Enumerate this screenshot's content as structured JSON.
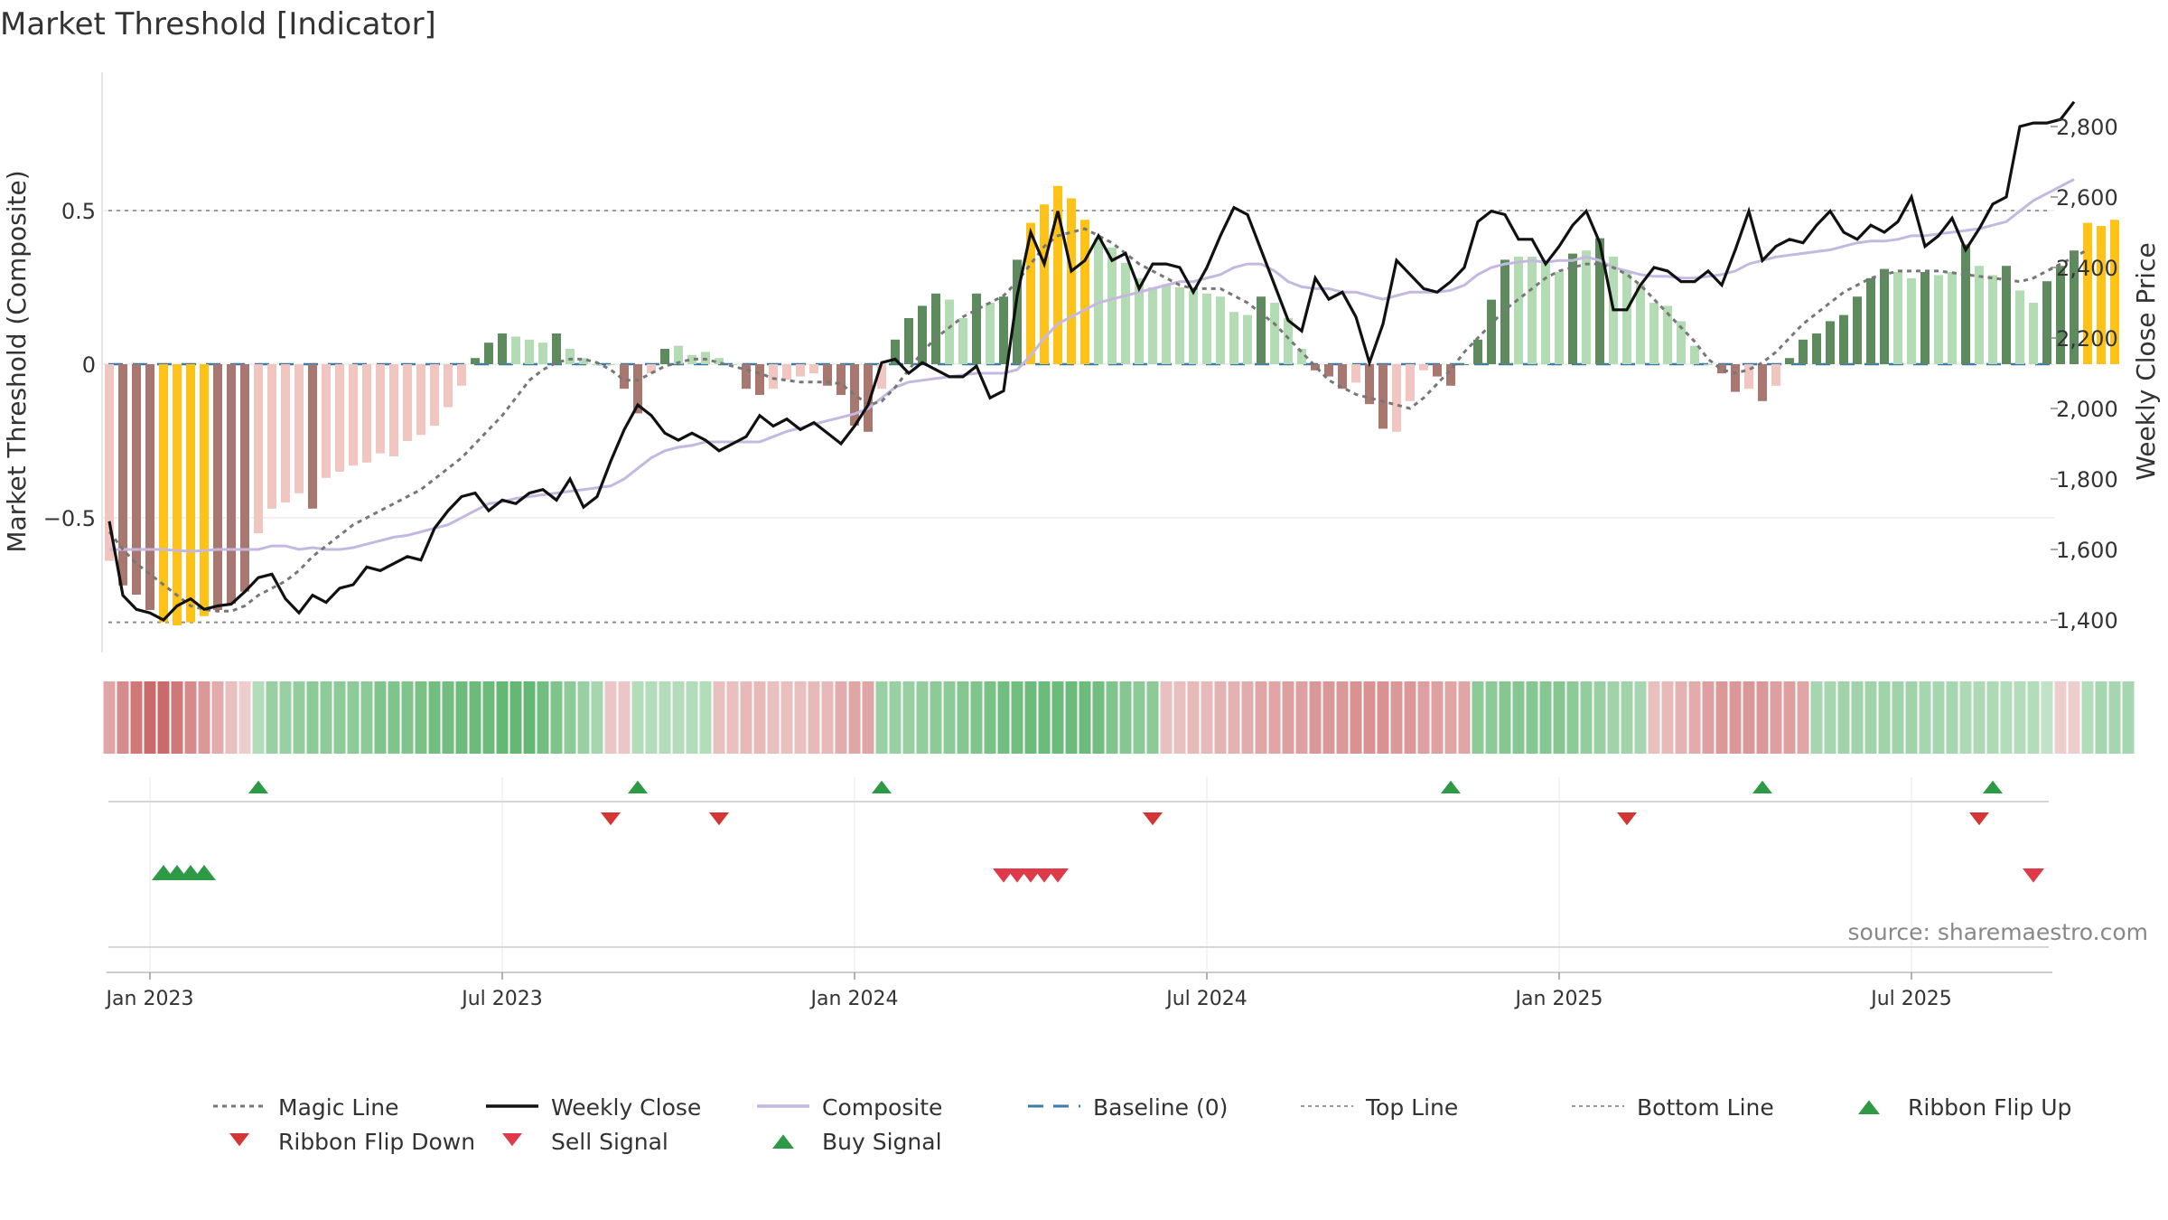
{
  "chart_data": {
    "type": "bar",
    "title": "Market Threshold [Indicator]",
    "ylabel": "Market Threshold (Composite)",
    "y2label": "Weekly Close Price",
    "source": "source: sharemaestro.com",
    "ylim": [
      -0.86,
      0.95
    ],
    "y2lim": [
      1330,
      2890
    ],
    "yticks": [
      {
        "value": 0.5,
        "label": "0.5"
      },
      {
        "value": 0,
        "label": "0"
      },
      {
        "value": -0.5,
        "label": "−0.5"
      }
    ],
    "y2ticks": [
      {
        "value": 2800,
        "label": "2,800"
      },
      {
        "value": 2600,
        "label": "2,600"
      },
      {
        "value": 2400,
        "label": "2,400"
      },
      {
        "value": 2200,
        "label": "2,200"
      },
      {
        "value": 2000,
        "label": "2,000"
      },
      {
        "value": 1800,
        "label": "1,800"
      },
      {
        "value": 1600,
        "label": "1,600"
      },
      {
        "value": 1400,
        "label": "1,400"
      }
    ],
    "xticks": [
      {
        "week": 3,
        "label": "Jan 2023"
      },
      {
        "week": 29,
        "label": "Jul 2023"
      },
      {
        "week": 55,
        "label": "Jan 2024"
      },
      {
        "week": 81,
        "label": "Jul 2024"
      },
      {
        "week": 107,
        "label": "Jan 2025"
      },
      {
        "week": 133,
        "label": "Jul 2025"
      }
    ],
    "reference_lines": {
      "top_line": 0.5,
      "bottom_line": -0.84,
      "baseline": 0
    },
    "composite_bars": [
      -0.64,
      -0.72,
      -0.75,
      -0.8,
      -0.84,
      -0.85,
      -0.84,
      -0.82,
      -0.8,
      -0.78,
      -0.74,
      -0.55,
      -0.47,
      -0.45,
      -0.42,
      -0.47,
      -0.37,
      -0.35,
      -0.33,
      -0.32,
      -0.29,
      -0.3,
      -0.25,
      -0.23,
      -0.2,
      -0.14,
      -0.07,
      0.02,
      0.07,
      0.1,
      0.09,
      0.08,
      0.07,
      0.1,
      0.05,
      0.02,
      0.0,
      0.0,
      -0.08,
      -0.16,
      -0.03,
      0.05,
      0.06,
      0.03,
      0.04,
      0.02,
      0.0,
      -0.08,
      -0.1,
      -0.08,
      -0.05,
      -0.04,
      -0.03,
      -0.07,
      -0.1,
      -0.2,
      -0.22,
      -0.08,
      0.08,
      0.15,
      0.19,
      0.23,
      0.21,
      0.15,
      0.23,
      0.2,
      0.22,
      0.34,
      0.46,
      0.52,
      0.58,
      0.54,
      0.47,
      0.41,
      0.38,
      0.33,
      0.28,
      0.25,
      0.26,
      0.25,
      0.24,
      0.23,
      0.22,
      0.17,
      0.16,
      0.22,
      0.2,
      0.15,
      0.05,
      -0.02,
      -0.04,
      -0.08,
      -0.06,
      -0.13,
      -0.21,
      -0.22,
      -0.12,
      -0.02,
      -0.04,
      -0.07,
      0.0,
      0.08,
      0.21,
      0.34,
      0.35,
      0.35,
      0.34,
      0.3,
      0.36,
      0.37,
      0.41,
      0.35,
      0.3,
      0.26,
      0.2,
      0.19,
      0.14,
      0.06,
      0.0,
      -0.03,
      -0.09,
      -0.08,
      -0.12,
      -0.07,
      0.02,
      0.08,
      0.1,
      0.14,
      0.16,
      0.22,
      0.28,
      0.31,
      0.3,
      0.28,
      0.3,
      0.29,
      0.3,
      0.39,
      0.32,
      0.29,
      0.32,
      0.24,
      0.2,
      0.27,
      0.32,
      0.37,
      0.46,
      0.45,
      0.47
    ],
    "weekly_close": [
      1680,
      1470,
      1430,
      1420,
      1400,
      1440,
      1460,
      1430,
      1440,
      1445,
      1480,
      1520,
      1530,
      1460,
      1420,
      1470,
      1450,
      1490,
      1500,
      1550,
      1540,
      1560,
      1580,
      1570,
      1660,
      1710,
      1750,
      1760,
      1710,
      1740,
      1730,
      1760,
      1770,
      1740,
      1800,
      1720,
      1750,
      1850,
      1940,
      2010,
      1980,
      1930,
      1910,
      1930,
      1910,
      1880,
      1900,
      1920,
      1980,
      1950,
      1970,
      1940,
      1960,
      1930,
      1900,
      1950,
      2010,
      2130,
      2140,
      2100,
      2130,
      2110,
      2090,
      2090,
      2120,
      2030,
      2050,
      2320,
      2500,
      2410,
      2560,
      2390,
      2420,
      2490,
      2420,
      2440,
      2340,
      2410,
      2410,
      2400,
      2330,
      2400,
      2490,
      2570,
      2550,
      2450,
      2350,
      2250,
      2220,
      2370,
      2310,
      2330,
      2260,
      2130,
      2240,
      2420,
      2380,
      2340,
      2330,
      2360,
      2400,
      2530,
      2560,
      2550,
      2480,
      2480,
      2410,
      2460,
      2520,
      2560,
      2470,
      2280,
      2280,
      2350,
      2400,
      2390,
      2360,
      2360,
      2390,
      2350,
      2450,
      2560,
      2420,
      2460,
      2480,
      2470,
      2520,
      2560,
      2500,
      2480,
      2520,
      2500,
      2530,
      2600,
      2460,
      2490,
      2540,
      2450,
      2510,
      2580,
      2600,
      2800,
      2810,
      2810,
      2820,
      2870
    ],
    "composite_line": [
      1600,
      1600,
      1600,
      1600,
      1600,
      1597,
      1595,
      1597,
      1600,
      1600,
      1600,
      1600,
      1610,
      1610,
      1600,
      1605,
      1600,
      1600,
      1605,
      1615,
      1625,
      1635,
      1640,
      1650,
      1660,
      1670,
      1690,
      1710,
      1730,
      1735,
      1745,
      1750,
      1755,
      1760,
      1765,
      1770,
      1775,
      1780,
      1800,
      1830,
      1860,
      1880,
      1890,
      1895,
      1905,
      1905,
      1905,
      1905,
      1905,
      1920,
      1935,
      1945,
      1955,
      1965,
      1975,
      1985,
      2000,
      2030,
      2060,
      2075,
      2080,
      2085,
      2090,
      2095,
      2100,
      2100,
      2100,
      2110,
      2150,
      2200,
      2240,
      2260,
      2280,
      2300,
      2310,
      2320,
      2330,
      2340,
      2350,
      2360,
      2360,
      2370,
      2380,
      2400,
      2410,
      2410,
      2390,
      2360,
      2345,
      2340,
      2340,
      2330,
      2330,
      2320,
      2310,
      2320,
      2330,
      2330,
      2330,
      2335,
      2350,
      2380,
      2400,
      2410,
      2415,
      2420,
      2415,
      2420,
      2420,
      2430,
      2420,
      2400,
      2390,
      2380,
      2375,
      2375,
      2370,
      2370,
      2375,
      2380,
      2390,
      2410,
      2420,
      2430,
      2435,
      2440,
      2445,
      2450,
      2460,
      2470,
      2475,
      2475,
      2480,
      2490,
      2490,
      2495,
      2500,
      2505,
      2510,
      2520,
      2530,
      2560,
      2590,
      2610,
      2630,
      2650
    ],
    "magic_line": [
      1650,
      1600,
      1560,
      1530,
      1500,
      1470,
      1440,
      1430,
      1425,
      1425,
      1440,
      1470,
      1490,
      1510,
      1540,
      1580,
      1610,
      1640,
      1670,
      1690,
      1710,
      1730,
      1750,
      1770,
      1800,
      1830,
      1860,
      1900,
      1940,
      1980,
      2030,
      2080,
      2110,
      2130,
      2140,
      2140,
      2130,
      2110,
      2080,
      2080,
      2100,
      2120,
      2130,
      2140,
      2140,
      2130,
      2120,
      2110,
      2100,
      2085,
      2080,
      2075,
      2075,
      2075,
      2070,
      2040,
      2010,
      2020,
      2060,
      2110,
      2160,
      2200,
      2230,
      2260,
      2280,
      2300,
      2320,
      2360,
      2410,
      2460,
      2490,
      2500,
      2510,
      2490,
      2470,
      2440,
      2410,
      2390,
      2370,
      2350,
      2340,
      2340,
      2340,
      2320,
      2300,
      2270,
      2240,
      2200,
      2160,
      2120,
      2080,
      2060,
      2040,
      2030,
      2020,
      2010,
      2000,
      2030,
      2070,
      2110,
      2160,
      2200,
      2240,
      2280,
      2310,
      2340,
      2370,
      2390,
      2400,
      2410,
      2410,
      2400,
      2380,
      2350,
      2310,
      2270,
      2230,
      2190,
      2140,
      2110,
      2100,
      2110,
      2130,
      2160,
      2200,
      2240,
      2270,
      2300,
      2330,
      2350,
      2370,
      2380,
      2390,
      2390,
      2390,
      2390,
      2385,
      2380,
      2375,
      2370,
      2365,
      2360,
      2370,
      2390,
      2410,
      2430,
      2450
    ],
    "ribbon": [
      -0.4,
      -0.6,
      -0.75,
      -0.85,
      -0.85,
      -0.75,
      -0.6,
      -0.5,
      -0.35,
      -0.2,
      -0.1,
      0.3,
      0.5,
      0.5,
      0.55,
      0.6,
      0.6,
      0.6,
      0.6,
      0.6,
      0.7,
      0.7,
      0.7,
      0.75,
      0.8,
      0.8,
      0.85,
      0.85,
      0.85,
      0.9,
      0.9,
      0.9,
      0.8,
      0.7,
      0.6,
      0.5,
      0.4,
      -0.15,
      -0.15,
      0.3,
      0.3,
      0.3,
      0.3,
      0.3,
      0.3,
      -0.2,
      -0.2,
      -0.25,
      -0.25,
      -0.2,
      -0.2,
      -0.2,
      -0.25,
      -0.25,
      -0.35,
      -0.4,
      -0.4,
      0.5,
      0.5,
      0.5,
      0.55,
      0.6,
      0.6,
      0.65,
      0.7,
      0.75,
      0.8,
      0.8,
      0.85,
      0.85,
      0.85,
      0.85,
      0.85,
      0.8,
      0.7,
      0.65,
      0.6,
      0.6,
      -0.2,
      -0.2,
      -0.25,
      -0.25,
      -0.3,
      -0.3,
      -0.35,
      -0.4,
      -0.4,
      -0.45,
      -0.45,
      -0.5,
      -0.5,
      -0.5,
      -0.55,
      -0.55,
      -0.55,
      -0.5,
      -0.5,
      -0.45,
      -0.45,
      -0.4,
      -0.4,
      0.6,
      0.6,
      0.65,
      0.65,
      0.65,
      0.65,
      0.65,
      0.6,
      0.55,
      0.5,
      0.45,
      0.45,
      0.4,
      -0.2,
      -0.25,
      -0.3,
      -0.35,
      -0.45,
      -0.5,
      -0.5,
      -0.5,
      -0.5,
      -0.45,
      -0.45,
      -0.4,
      0.4,
      0.4,
      0.45,
      0.45,
      0.45,
      0.45,
      0.45,
      0.45,
      0.4,
      0.4,
      0.4,
      0.35,
      0.35,
      0.35,
      0.3,
      0.3,
      0.3,
      0.2,
      -0.1,
      -0.1,
      0.3,
      0.4,
      0.4,
      0.4
    ],
    "ribbon_flip_up_weeks": [
      11,
      39,
      57,
      99,
      122,
      139
    ],
    "ribbon_flip_down_weeks": [
      37,
      45,
      77,
      112,
      138
    ],
    "buy_signal_weeks": [
      4,
      5,
      6,
      7
    ],
    "sell_signal_weeks": [
      66,
      67,
      68,
      69,
      70,
      142
    ],
    "colors": {
      "deep_red": "#a87770",
      "pale_red": "#f1c6c1",
      "yellow": "#ffc317",
      "dark_green": "#5e8b5e",
      "light_green": "#b4dcb4",
      "weekly_close": "#111111",
      "composite": "#c5b8e0",
      "magic_line": "#777777",
      "baseline": "#3a7ba8",
      "flip_up": "#2e9a46",
      "flip_down": "#d43535",
      "buy_signal": "#2e9a46",
      "sell_signal": "#e03a4a"
    },
    "legend": {
      "position": "bottom",
      "items": [
        {
          "label": "Magic Line",
          "symbol": "dotted",
          "color": "#777777"
        },
        {
          "label": "Weekly Close",
          "symbol": "solid",
          "color": "#111111"
        },
        {
          "label": "Composite",
          "symbol": "solid",
          "color": "#c5b8e0"
        },
        {
          "label": "Baseline (0)",
          "symbol": "dashed",
          "color": "#3a7ba8"
        },
        {
          "label": "Top Line",
          "symbol": "dotted-light",
          "color": "#999999"
        },
        {
          "label": "Bottom Line",
          "symbol": "dotted-light",
          "color": "#999999"
        },
        {
          "label": "Ribbon Flip Up",
          "symbol": "tri-up",
          "color": "#2e9a46"
        },
        {
          "label": "Ribbon Flip Down",
          "symbol": "tri-down",
          "color": "#d43535"
        },
        {
          "label": "Sell Signal",
          "symbol": "tri-down",
          "color": "#e03a4a"
        },
        {
          "label": "Buy Signal",
          "symbol": "tri-up",
          "color": "#2e9a46"
        }
      ]
    }
  }
}
